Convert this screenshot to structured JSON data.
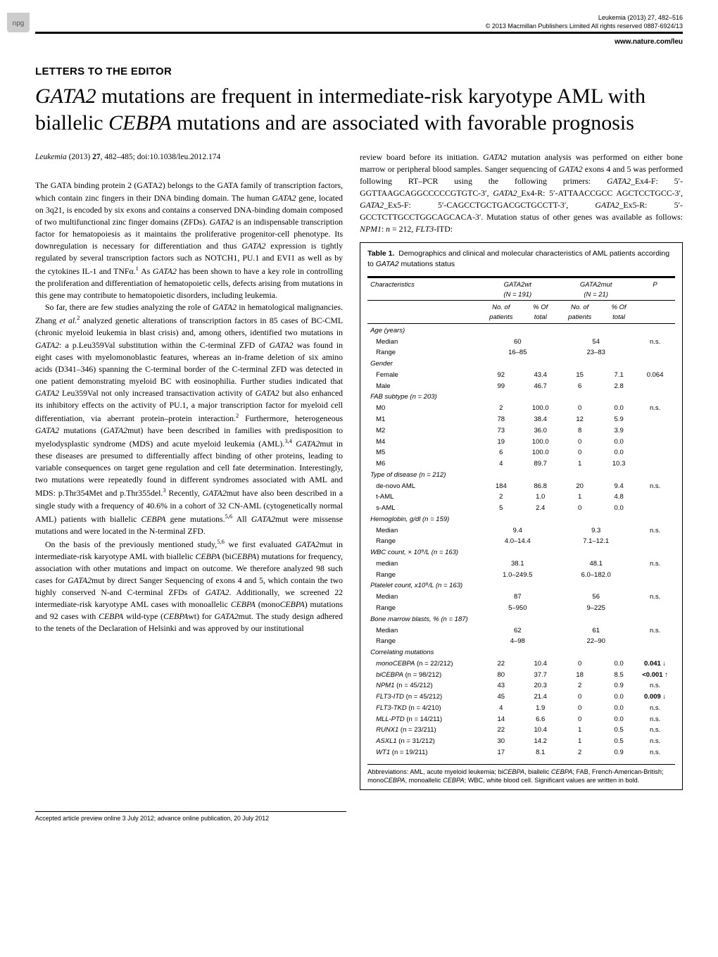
{
  "header": {
    "journal_ref": "Leukemia (2013) 27, 482–516",
    "copyright": "© 2013 Macmillan Publishers Limited   All rights reserved 0887-6924/13",
    "url": "www.nature.com/leu",
    "npg": "npg"
  },
  "section_label": "LETTERS TO THE EDITOR",
  "title_parts": {
    "p1": "GATA2",
    "p2": " mutations are frequent in intermediate-risk karyotype AML with biallelic ",
    "p3": "CEBPA",
    "p4": " mutations and are associated with favorable prognosis"
  },
  "citation": {
    "journal": "Leukemia",
    "year_vol": " (2013) ",
    "vol": "27",
    "pages_doi": ", 482–485; doi:10.1038/leu.2012.174"
  },
  "body": {
    "p1a": "The GATA binding protein 2 (GATA2) belongs to the GATA family of transcription factors, which contain zinc fingers in their DNA binding domain. The human ",
    "p1b": "GATA2",
    "p1c": " gene, located on 3q21, is encoded by six exons and contains a conserved DNA-binding domain composed of two multifunctional zinc finger domains (ZFDs). ",
    "p1d": "GATA2",
    "p1e": " is an indispensable transcription factor for hematopoiesis as it maintains the proliferative progenitor-cell phenotype. Its downregulation is necessary for differentiation and thus ",
    "p1f": "GATA2",
    "p1g": " expression is tightly regulated by several transcription factors such as NOTCH1, PU.1 and EVI1 as well as by the cytokines IL-1 and TNFα.",
    "p1h": " As ",
    "p1i": "GATA2",
    "p1j": " has been shown to have a key role in controlling the proliferation and differentiation of hematopoietic cells, defects arising from mutations in this gene may contribute to hematopoietic disorders, including leukemia.",
    "p2a": "So far, there are few studies analyzing the role of ",
    "p2b": "GATA2",
    "p2c": " in hematological malignancies. Zhang ",
    "p2d": "et al.",
    "p2e": " analyzed genetic alterations of transcription factors in 85 cases of BC-CML (chronic myeloid leukemia in blast crisis) and, among others, identified two mutations in ",
    "p2f": "GATA2",
    "p2g": ": a p.Leu359Val substitution within the C-terminal ZFD of ",
    "p2h": "GATA2",
    "p2i": " was found in eight cases with myelomonoblastic features, whereas an in-frame deletion of six amino acids (D341–346) spanning the C-terminal border of the C-terminal ZFD was detected in one patient demonstrating myeloid BC with eosinophilia. Further studies indicated that ",
    "p2j": "GATA2",
    "p2k": " Leu359Val not only increased transactivation activity of ",
    "p2l": "GATA2",
    "p2m": " but also enhanced its inhibitory effects on the activity of PU.1, a major transcription factor for myeloid cell differentiation, via aberrant protein–protein interaction.",
    "p2n": " Furthermore, heterogeneous ",
    "p2o": "GATA2",
    "p2p": " mutations (",
    "p2q": "GATA2",
    "p2r": "mut) have been described in families with predisposition to myelodysplastic syndrome (MDS) and acute myeloid leukemia (AML).",
    "p2s": " ",
    "p2t": "GATA2",
    "p2u": "mut in these diseases are presumed to differentially affect binding of other proteins, leading to variable consequences on target gene regulation and cell fate determination. Interestingly, two mutations were repeatedly found in different syndromes associated with AML and MDS: p.Thr354Met and p.Thr355del.",
    "p2v": " Recently, ",
    "p2w": "GATA2",
    "p2x": "mut have also been described in a single study with a frequency of 40.6% in a cohort of 32 CN-AML (cytogenetically normal AML) patients with biallelic ",
    "p2y": "CEBPA",
    "p2z": " gene mutations.",
    "p2aa": " All ",
    "p2ab": "GATA2",
    "p2ac": "mut were missense mutations and were located in the N-terminal ZFD.",
    "p3a": "On the basis of the previously mentioned study,",
    "p3b": " we first evaluated ",
    "p3c": "GATA2",
    "p3d": "mut in intermediate-risk karyotype AML with biallelic ",
    "p3e": "CEBPA",
    "p3f": " (bi",
    "p3g": "CEBPA",
    "p3h": ") mutations for frequency, association with other mutations and impact on outcome. We therefore analyzed 98 such cases for ",
    "p3i": "GATA2",
    "p3j": "mut by direct Sanger Sequencing of exons 4 and 5, which contain the two highly conserved N-and C-terminal ZFDs of ",
    "p3k": "GATA2",
    "p3l": ". Additionally, we screened 22 intermediate-risk karyotype AML cases with monoallelic ",
    "p3m": "CEBPA",
    "p3n": " (mono",
    "p3o": "CEBPA",
    "p3p": ") mutations and 92 cases with ",
    "p3q": "CEBPA",
    "p3r": " wild-type (",
    "p3s": "CEBPA",
    "p3t": "wt) for ",
    "p3u": "GATA2",
    "p3v": "mut. The study design adhered to the tenets of the Declaration of Helsinki and was approved by our institutional ",
    "r1a": "review board before its initiation. ",
    "r1b": "GATA2",
    "r1c": " mutation analysis was performed on either bone marrow or peripheral blood samples. Sanger sequencing of ",
    "r1d": "GATA2",
    "r1e": " exons 4 and 5 was performed following RT–PCR using the following primers: ",
    "r1f": "GATA2",
    "r1g": "_Ex4-F: 5′-GGTTAAGCAGGCCCCCGTGTC-3′, ",
    "r1h": "GATA2",
    "r1i": "_Ex4-R: 5′-ATTAACCGCC AGCTCCTGCC-3′, ",
    "r1j": "GATA2",
    "r1k": "_Ex5-F: 5′-CAGCCTGCTGACGCTGCCTT-3′, ",
    "r1l": "GATA2",
    "r1m": "_Ex5-R: 5′-GCCTCTTGCCTGGCAGCACA-3′. Mutation status of other genes was available as follows: ",
    "r1n": "NPM1",
    "r1o": ": ",
    "r1p": "n",
    "r1q": " = 212, ",
    "r1r": "FLT3",
    "r1s": "-ITD:"
  },
  "table": {
    "label": "Table 1.",
    "caption_a": "Demographics and clinical and molecular characteristics of AML patients according to ",
    "caption_b": "GATA2",
    "caption_c": " mutations status",
    "col_char": "Characteristics",
    "col_wt": "GATA2wt",
    "col_wt_n": "(N = 191)",
    "col_mut": "GATA2mut",
    "col_mut_n": "(N = 21)",
    "col_p": "P",
    "sub_no": "No. of patients",
    "sub_pct": "% Of total",
    "groups": [
      {
        "head": "Age (years)",
        "rows": [
          {
            "l": "Median",
            "a": "60",
            "b": "",
            "c": "54",
            "d": "",
            "p": "n.s."
          },
          {
            "l": "Range",
            "a": "16–85",
            "b": "",
            "c": "23–83",
            "d": "",
            "p": ""
          }
        ]
      },
      {
        "head": "Gender",
        "rows": [
          {
            "l": "Female",
            "a": "92",
            "b": "43.4",
            "c": "15",
            "d": "7.1",
            "p": "0.064"
          },
          {
            "l": "Male",
            "a": "99",
            "b": "46.7",
            "c": "6",
            "d": "2.8",
            "p": ""
          }
        ]
      },
      {
        "head": "FAB subtype (n = 203)",
        "rows": [
          {
            "l": "M0",
            "a": "2",
            "b": "100.0",
            "c": "0",
            "d": "0.0",
            "p": "n.s."
          },
          {
            "l": "M1",
            "a": "78",
            "b": "38.4",
            "c": "12",
            "d": "5.9",
            "p": ""
          },
          {
            "l": "M2",
            "a": "73",
            "b": "36.0",
            "c": "8",
            "d": "3.9",
            "p": ""
          },
          {
            "l": "M4",
            "a": "19",
            "b": "100.0",
            "c": "0",
            "d": "0.0",
            "p": ""
          },
          {
            "l": "M5",
            "a": "6",
            "b": "100.0",
            "c": "0",
            "d": "0.0",
            "p": ""
          },
          {
            "l": "M6",
            "a": "4",
            "b": "89.7",
            "c": "1",
            "d": "10.3",
            "p": ""
          }
        ]
      },
      {
        "head": "Type of disease (n = 212)",
        "rows": [
          {
            "l": "de-novo AML",
            "a": "184",
            "b": "86.8",
            "c": "20",
            "d": "9.4",
            "p": "n.s."
          },
          {
            "l": "t-AML",
            "a": "2",
            "b": "1.0",
            "c": "1",
            "d": "4.8",
            "p": ""
          },
          {
            "l": "s-AML",
            "a": "5",
            "b": "2.4",
            "c": "0",
            "d": "0.0",
            "p": ""
          }
        ]
      },
      {
        "head": "Hemoglobin, g/dl (n = 159)",
        "rows": [
          {
            "l": "Median",
            "a": "9.4",
            "b": "",
            "c": "9.3",
            "d": "",
            "p": "n.s."
          },
          {
            "l": "Range",
            "a": "4.0–14.4",
            "b": "",
            "c": "7.1–12.1",
            "d": "",
            "p": ""
          }
        ]
      },
      {
        "head": "WBC count, × 10⁹/L (n = 163)",
        "rows": [
          {
            "l": "median",
            "a": "38.1",
            "b": "",
            "c": "48.1",
            "d": "",
            "p": "n.s."
          },
          {
            "l": "Range",
            "a": "1.0–249.5",
            "b": "",
            "c": "6.0–182.0",
            "d": "",
            "p": ""
          }
        ]
      },
      {
        "head": "Platelet count, x10⁹/L (n = 163)",
        "rows": [
          {
            "l": "Median",
            "a": "87",
            "b": "",
            "c": "56",
            "d": "",
            "p": "n.s."
          },
          {
            "l": "Range",
            "a": "5–950",
            "b": "",
            "c": "9–225",
            "d": "",
            "p": ""
          }
        ]
      },
      {
        "head": "Bone marrow blasts, % (n = 187)",
        "rows": [
          {
            "l": "Median",
            "a": "62",
            "b": "",
            "c": "61",
            "d": "",
            "p": "n.s."
          },
          {
            "l": "Range",
            "a": "4–98",
            "b": "",
            "c": "22–90",
            "d": "",
            "p": ""
          }
        ]
      }
    ],
    "corr_head": "Correlating mutations",
    "corr_rows": [
      {
        "l": "monoCEBPA (n = 22/212)",
        "a": "22",
        "b": "10.4",
        "c": "0",
        "d": "0.0",
        "p": "0.041 ↓",
        "bold": true
      },
      {
        "l": "biCEBPA (n = 98/212)",
        "a": "80",
        "b": "37.7",
        "c": "18",
        "d": "8.5",
        "p": "<0.001 ↑",
        "bold": true
      },
      {
        "l": "NPM1 (n = 45/212)",
        "a": "43",
        "b": "20.3",
        "c": "2",
        "d": "0.9",
        "p": "n.s.",
        "bold": false
      },
      {
        "l": "FLT3-ITD (n = 45/212)",
        "a": "45",
        "b": "21.4",
        "c": "0",
        "d": "0.0",
        "p": "0.009 ↓",
        "bold": true
      },
      {
        "l": "FLT3-TKD (n = 4/210)",
        "a": "4",
        "b": "1.9",
        "c": "0",
        "d": "0.0",
        "p": "n.s.",
        "bold": false
      },
      {
        "l": "MLL-PTD (n = 14/211)",
        "a": "14",
        "b": "6.6",
        "c": "0",
        "d": "0.0",
        "p": "n.s.",
        "bold": false
      },
      {
        "l": "RUNX1 (n = 23/211)",
        "a": "22",
        "b": "10.4",
        "c": "1",
        "d": "0.5",
        "p": "n.s.",
        "bold": false
      },
      {
        "l": "ASXL1 (n = 31/212)",
        "a": "30",
        "b": "14.2",
        "c": "1",
        "d": "0.5",
        "p": "n.s.",
        "bold": false
      },
      {
        "l": "WT1 (n = 19/211)",
        "a": "17",
        "b": "8.1",
        "c": "2",
        "d": "0.9",
        "p": "n.s.",
        "bold": false
      }
    ],
    "abbrev_a": "Abbreviations: AML, acute myeloid leukemia; bi",
    "abbrev_b": "CEBPA",
    "abbrev_c": ", biallelic ",
    "abbrev_d": "CEBPA",
    "abbrev_e": "; FAB, French-American-British; mono",
    "abbrev_f": "CEBPA",
    "abbrev_g": ", monoallelic ",
    "abbrev_h": "CEBPA",
    "abbrev_i": "; WBC, white blood cell. Significant values are written in bold."
  },
  "footer": "Accepted article preview online 3 July 2012; advance online publication, 20 July 2012"
}
